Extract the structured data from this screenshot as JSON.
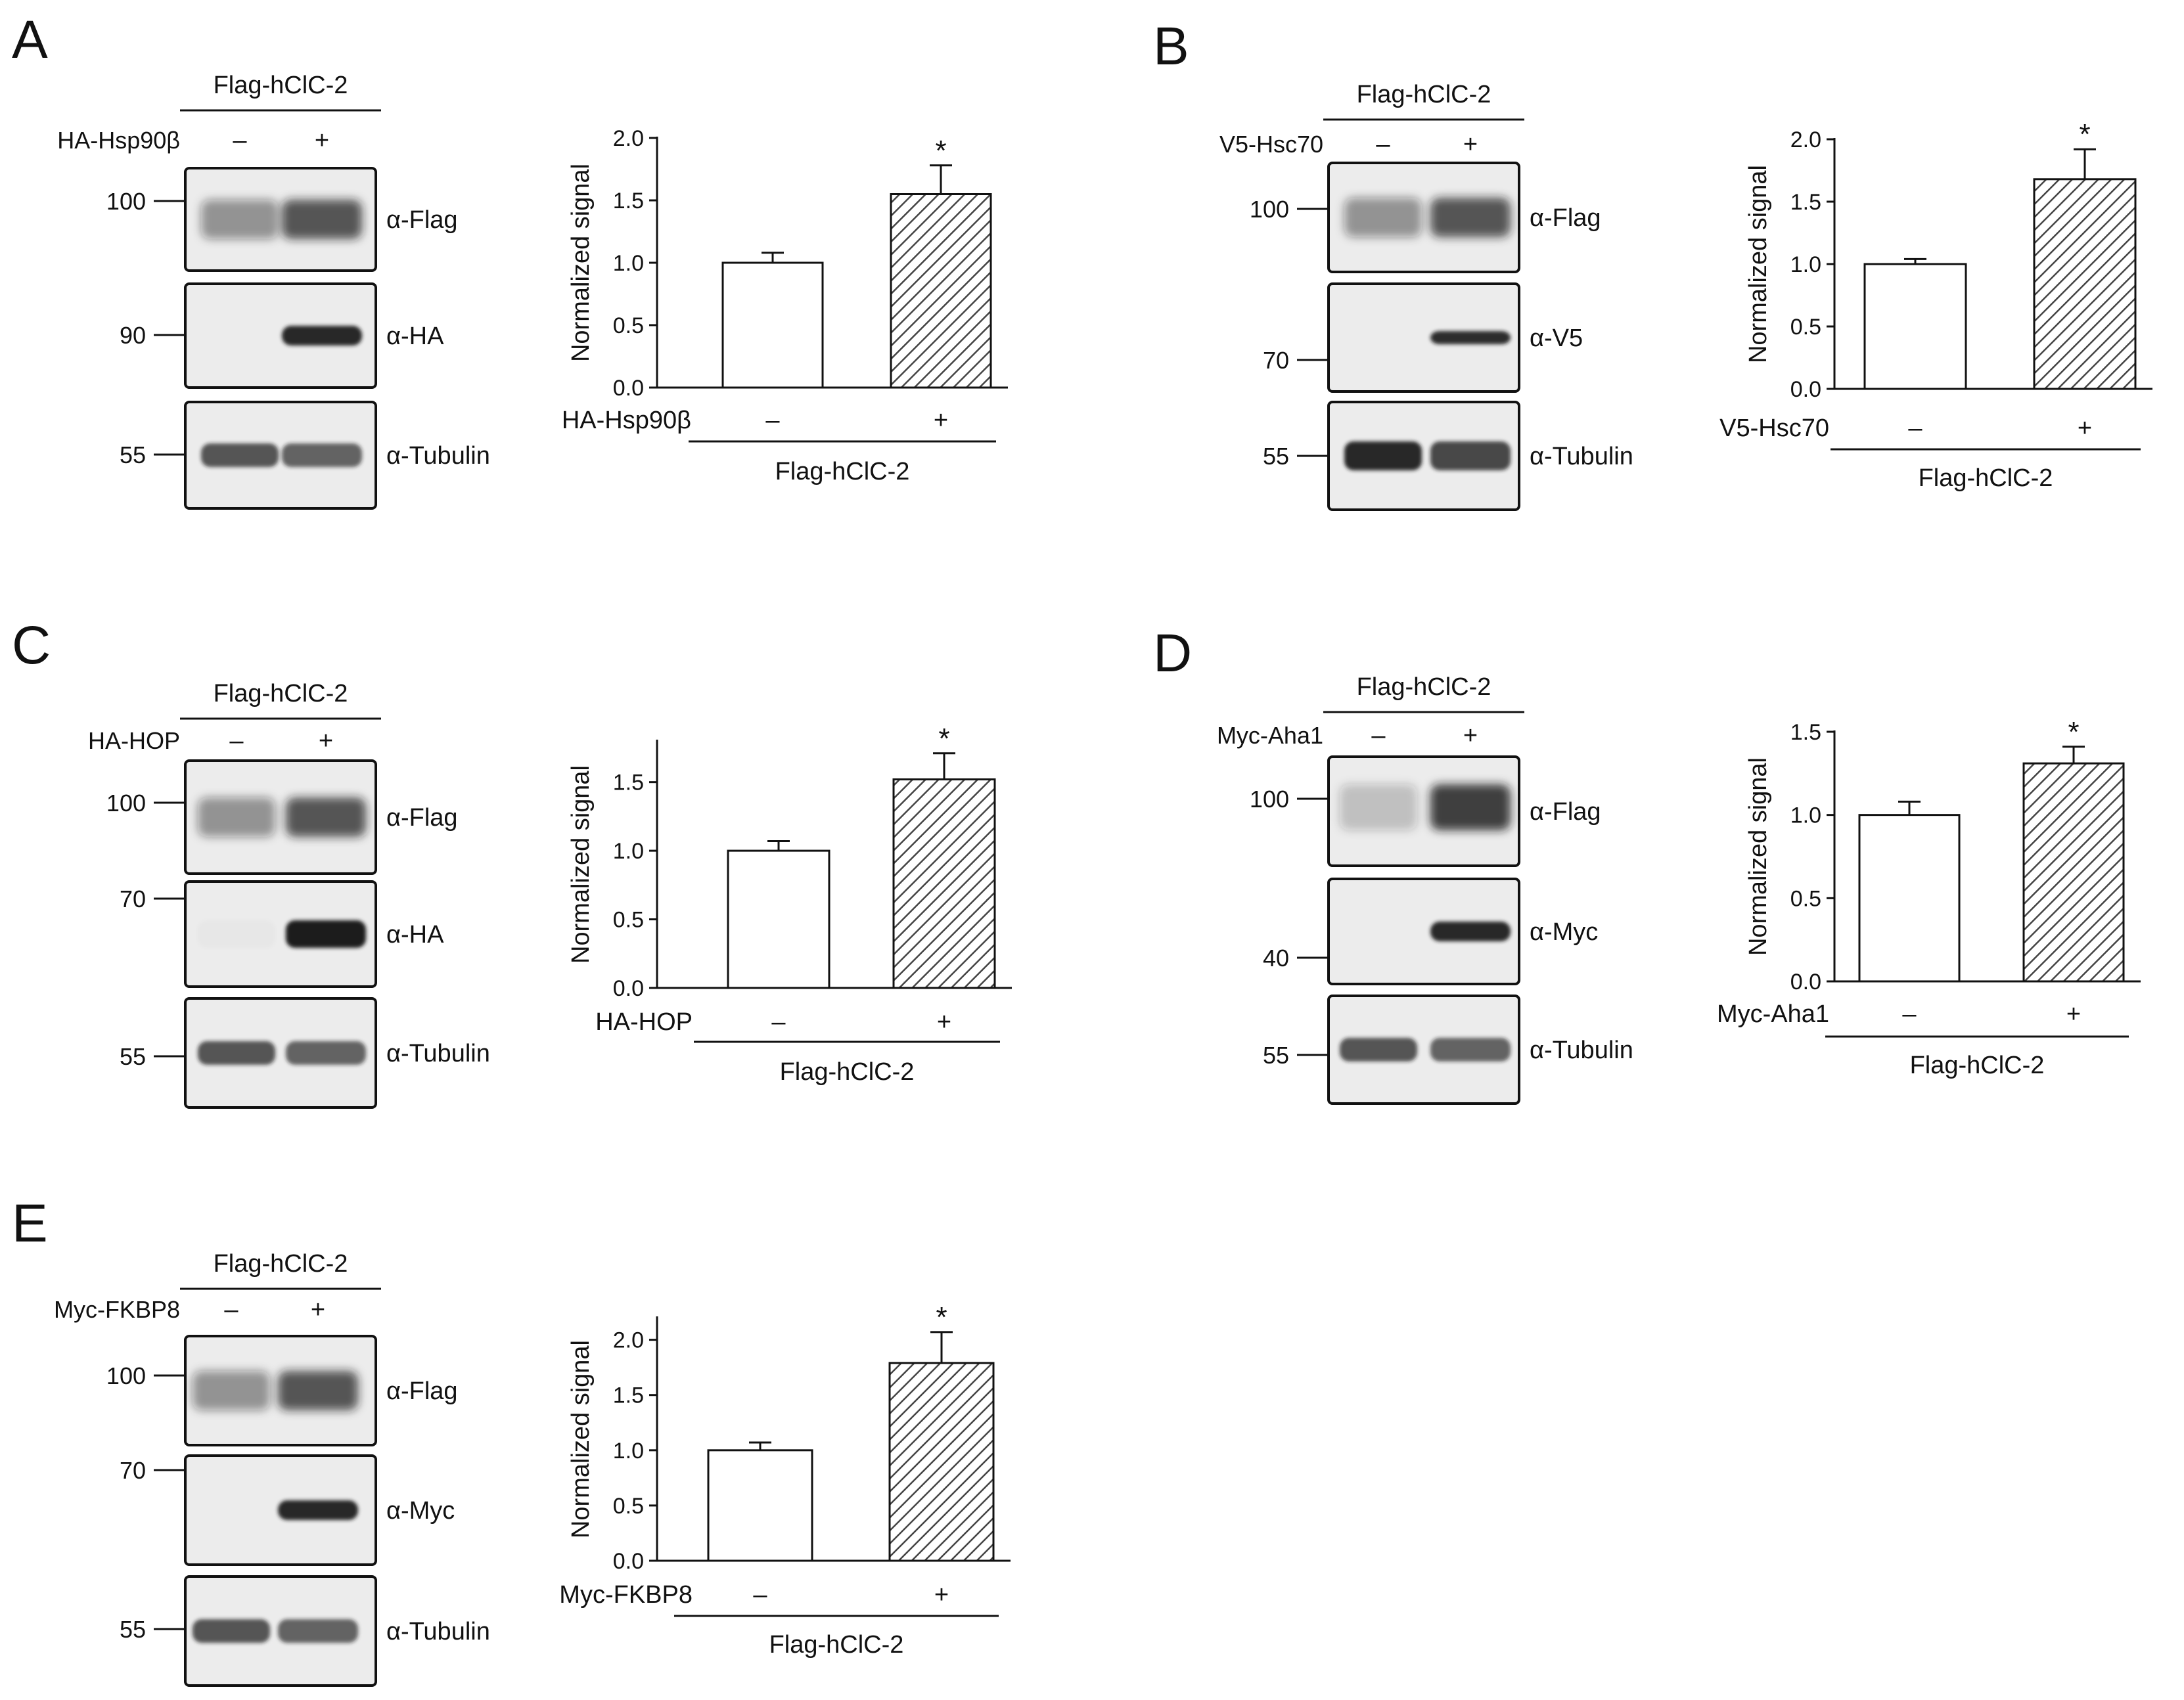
{
  "figure": {
    "panels": [
      {
        "letter": "A",
        "construct": "Flag-hClC-2",
        "cotransfected": "HA-Hsp90β",
        "lane_marks": [
          "–",
          "+"
        ],
        "blot": {
          "strips": [
            {
              "antibody": "α-Flag",
              "marker": "100",
              "band": "flag"
            },
            {
              "antibody": "α-HA",
              "marker": "90",
              "band": "tag"
            },
            {
              "antibody": "α-Tubulin",
              "marker": "55",
              "band": "tubulin"
            }
          ]
        }
      },
      {
        "letter": "B",
        "construct": "Flag-hClC-2",
        "cotransfected": "V5-Hsc70",
        "lane_marks": [
          "–",
          "+"
        ],
        "blot": {
          "strips": [
            {
              "antibody": "α-Flag",
              "marker": "100",
              "band": "flag"
            },
            {
              "antibody": "α-V5",
              "marker": "70",
              "band": "tag_thin"
            },
            {
              "antibody": "α-Tubulin",
              "marker": "55",
              "band": "tubulin_strong"
            }
          ]
        }
      },
      {
        "letter": "C",
        "construct": "Flag-hClC-2",
        "cotransfected": "HA-HOP",
        "lane_marks": [
          "–",
          "+"
        ],
        "blot": {
          "strips": [
            {
              "antibody": "α-Flag",
              "marker": "100",
              "band": "flag"
            },
            {
              "antibody": "α-HA",
              "marker": "70",
              "band": "tag_strong"
            },
            {
              "antibody": "α-Tubulin",
              "marker": "55",
              "band": "tubulin"
            }
          ]
        }
      },
      {
        "letter": "D",
        "construct": "Flag-hClC-2",
        "cotransfected": "Myc-Aha1",
        "lane_marks": [
          "–",
          "+"
        ],
        "blot": {
          "strips": [
            {
              "antibody": "α-Flag",
              "marker": "100",
              "band": "flag_high"
            },
            {
              "antibody": "α-Myc",
              "marker": "40",
              "band": "tag"
            },
            {
              "antibody": "α-Tubulin",
              "marker": "55",
              "band": "tubulin"
            }
          ]
        }
      },
      {
        "letter": "E",
        "construct": "Flag-hClC-2",
        "cotransfected": "Myc-FKBP8",
        "lane_marks": [
          "–",
          "+"
        ],
        "blot": {
          "strips": [
            {
              "antibody": "α-Flag",
              "marker": "100",
              "band": "flag"
            },
            {
              "antibody": "α-Myc",
              "marker": "70",
              "band": "tag"
            },
            {
              "antibody": "α-Tubulin",
              "marker": "55",
              "band": "tubulin"
            }
          ]
        }
      }
    ]
  },
  "chart_data": [
    {
      "type": "bar",
      "panel": "A",
      "ylabel": "Normalized signal",
      "ylim": [
        0,
        2.0
      ],
      "yticks": [
        "0.0",
        "0.5",
        "1.0",
        "1.5",
        "2.0"
      ],
      "categories": [
        "–",
        "+"
      ],
      "values": [
        1.0,
        1.55
      ],
      "errors": [
        0.08,
        0.23
      ],
      "significance": [
        "",
        "*"
      ],
      "category_axis_label": "HA-Hsp90β",
      "group_label": "Flag-hClC-2",
      "bar_fills": [
        "white",
        "hatched"
      ]
    },
    {
      "type": "bar",
      "panel": "B",
      "ylabel": "Normalized signal",
      "ylim": [
        0,
        2.0
      ],
      "yticks": [
        "0.0",
        "0.5",
        "1.0",
        "1.5",
        "2.0"
      ],
      "categories": [
        "–",
        "+"
      ],
      "values": [
        1.0,
        1.68
      ],
      "errors": [
        0.04,
        0.24
      ],
      "significance": [
        "",
        "*"
      ],
      "category_axis_label": "V5-Hsc70",
      "group_label": "Flag-hClC-2",
      "bar_fills": [
        "white",
        "hatched"
      ]
    },
    {
      "type": "bar",
      "panel": "C",
      "ylabel": "Normalized signal",
      "ylim": [
        0,
        1.8
      ],
      "yticks": [
        "0.0",
        "0.5",
        "1.0",
        "1.5"
      ],
      "categories": [
        "–",
        "+"
      ],
      "values": [
        1.0,
        1.52
      ],
      "errors": [
        0.07,
        0.19
      ],
      "significance": [
        "",
        "*"
      ],
      "category_axis_label": "HA-HOP",
      "group_label": "Flag-hClC-2",
      "bar_fills": [
        "white",
        "hatched"
      ]
    },
    {
      "type": "bar",
      "panel": "D",
      "ylabel": "Normalized signal",
      "ylim": [
        0,
        1.5
      ],
      "yticks": [
        "0.0",
        "0.5",
        "1.0",
        "1.5"
      ],
      "categories": [
        "–",
        "+"
      ],
      "values": [
        1.0,
        1.31
      ],
      "errors": [
        0.08,
        0.1
      ],
      "significance": [
        "",
        "*"
      ],
      "category_axis_label": "Myc-Aha1",
      "group_label": "Flag-hClC-2",
      "bar_fills": [
        "white",
        "hatched"
      ]
    },
    {
      "type": "bar",
      "panel": "E",
      "ylabel": "Normalized signal",
      "ylim": [
        0,
        2.2
      ],
      "yticks": [
        "0.0",
        "0.5",
        "1.0",
        "1.5",
        "2.0"
      ],
      "categories": [
        "–",
        "+"
      ],
      "values": [
        1.0,
        1.79
      ],
      "errors": [
        0.07,
        0.28
      ],
      "significance": [
        "",
        "*"
      ],
      "category_axis_label": "Myc-FKBP8",
      "group_label": "Flag-hClC-2",
      "bar_fills": [
        "white",
        "hatched"
      ]
    }
  ]
}
